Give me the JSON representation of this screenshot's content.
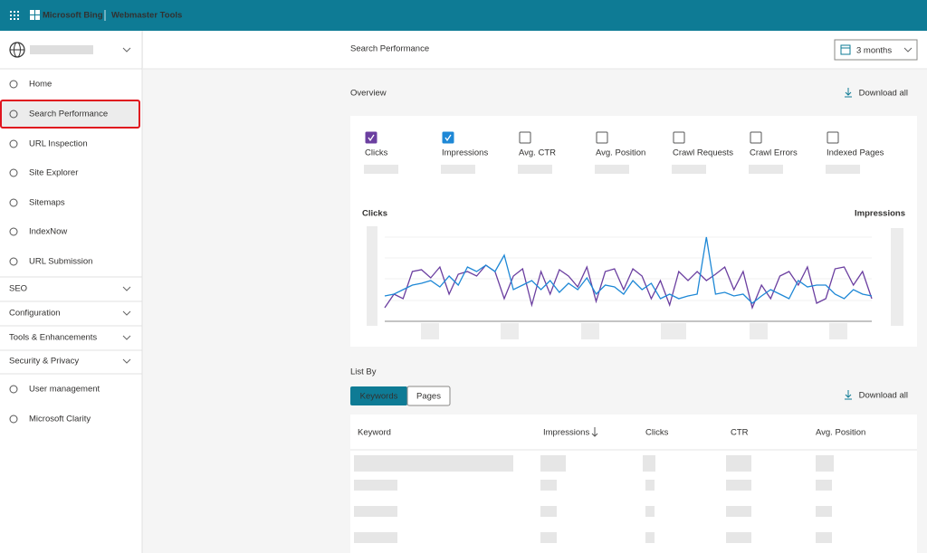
{
  "header": {
    "brand": "Microsoft Bing",
    "product": "Webmaster Tools"
  },
  "sidebar": {
    "nav": [
      "Home",
      "Search Performance",
      "URL Inspection",
      "Site Explorer",
      "Sitemaps",
      "IndexNow",
      "URL Submission"
    ],
    "sections": [
      "SEO",
      "Configuration",
      "Tools & Enhancements",
      "Security & Privacy"
    ],
    "bottom_nav": [
      "User management",
      "Microsoft Clarity"
    ]
  },
  "page": {
    "title": "Search Performance",
    "range": "3 months"
  },
  "overview": {
    "title": "Overview",
    "download": "Download all",
    "metrics": [
      {
        "label": "Clicks",
        "checked": true,
        "color": "#6b3fa0"
      },
      {
        "label": "Impressions",
        "checked": true,
        "color": "#1e88d6"
      },
      {
        "label": "Avg. CTR",
        "checked": false
      },
      {
        "label": "Avg. Position",
        "checked": false
      },
      {
        "label": "Crawl Requests",
        "checked": false
      },
      {
        "label": "Crawl Errors",
        "checked": false
      },
      {
        "label": "Indexed Pages",
        "checked": false
      }
    ]
  },
  "chart_data": {
    "type": "line",
    "y_label": "Clicks",
    "y2_label": "Impressions",
    "ylim": [
      0,
      100
    ],
    "y2lim": [
      0,
      100
    ],
    "series": [
      {
        "color": "#6b3fa0",
        "values": [
          15,
          30,
          25,
          55,
          57,
          48,
          60,
          30,
          52,
          55,
          50,
          62,
          55,
          25,
          50,
          58,
          18,
          55,
          30,
          57,
          50,
          38,
          60,
          22,
          55,
          58,
          35,
          58,
          50,
          25,
          45,
          18,
          55,
          45,
          55,
          45,
          52,
          60,
          35,
          55,
          15,
          40,
          25,
          50,
          55,
          40,
          60,
          20,
          25,
          58,
          60,
          40,
          55,
          25
        ]
      },
      {
        "color": "#1e88d6",
        "axis": "y2",
        "values": [
          28,
          30,
          35,
          40,
          42,
          45,
          38,
          50,
          40,
          60,
          55,
          62,
          55,
          73,
          35,
          40,
          45,
          35,
          45,
          32,
          42,
          35,
          48,
          30,
          40,
          38,
          30,
          45,
          35,
          42,
          25,
          30,
          25,
          28,
          30,
          93,
          30,
          32,
          28,
          30,
          20,
          28,
          35,
          30,
          25,
          45,
          38,
          40,
          40,
          30,
          25,
          35,
          30,
          28
        ]
      }
    ]
  },
  "list_by": {
    "title": "List By",
    "tabs": [
      "Keywords",
      "Pages"
    ],
    "download": "Download all",
    "columns": [
      "Keyword",
      "Impressions",
      "Clicks",
      "CTR",
      "Avg. Position"
    ]
  }
}
